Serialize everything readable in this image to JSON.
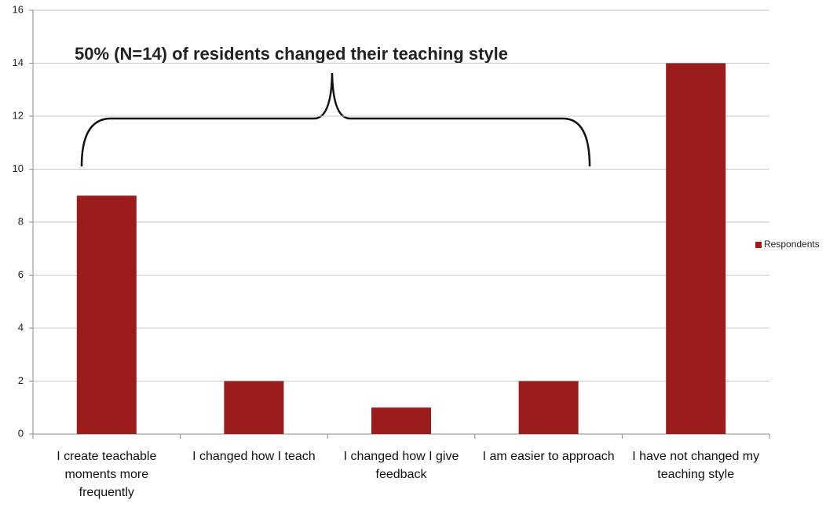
{
  "chart_data": {
    "type": "bar",
    "annotation": "50% (N=14) of residents changed their teaching style",
    "categories": [
      "I create teachable moments more frequently",
      "I changed how I teach",
      "I changed how I give feedback",
      "I am easier to approach",
      "I have not changed my teaching style"
    ],
    "series": [
      {
        "name": "Respondents",
        "color": "#9b1c1c",
        "values": [
          9,
          2,
          1,
          2,
          14
        ]
      }
    ],
    "ylim": [
      0,
      16
    ],
    "yticks": [
      0,
      2,
      4,
      6,
      8,
      10,
      12,
      14,
      16
    ],
    "grid": true,
    "legend": "right"
  }
}
